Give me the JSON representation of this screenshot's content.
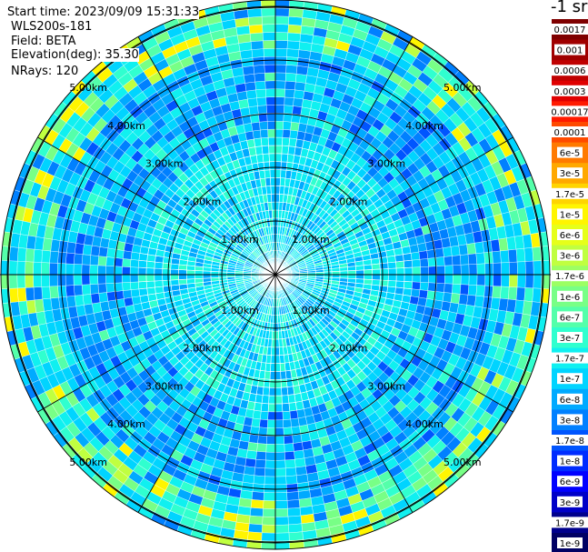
{
  "info": {
    "start_time": "Start time: 2023/09/09 15:31:33",
    "device": "WLS200s-181",
    "field": "Field: BETA",
    "elevation": "Elevation(deg): 35.30",
    "nrays": "NRays: 120"
  },
  "colorbar": {
    "unit_label": "-1 sr",
    "levels": [
      {
        "label": "0.0017",
        "color": "#7f0000"
      },
      {
        "label": "0.001",
        "color": "#a00000"
      },
      {
        "label": "0.0006",
        "color": "#c00000"
      },
      {
        "label": "0.0003",
        "color": "#e00000"
      },
      {
        "label": "0.00017",
        "color": "#ff1a00"
      },
      {
        "label": "0.0001",
        "color": "#ff4a00"
      },
      {
        "label": "6e-5",
        "color": "#ff7a00"
      },
      {
        "label": "3e-5",
        "color": "#ffa800"
      },
      {
        "label": "1.7e-5",
        "color": "#ffd400"
      },
      {
        "label": "1e-5",
        "color": "#fff500"
      },
      {
        "label": "6e-6",
        "color": "#e6ff1a"
      },
      {
        "label": "3e-6",
        "color": "#c0ff40"
      },
      {
        "label": "1.7e-6",
        "color": "#9cff63"
      },
      {
        "label": "1e-6",
        "color": "#78ff86"
      },
      {
        "label": "6e-7",
        "color": "#54ffaa"
      },
      {
        "label": "3e-7",
        "color": "#30ffcf"
      },
      {
        "label": "1.7e-7",
        "color": "#10f0f0"
      },
      {
        "label": "1e-7",
        "color": "#00d4ff"
      },
      {
        "label": "6e-8",
        "color": "#00aaff"
      },
      {
        "label": "3e-8",
        "color": "#0080ff"
      },
      {
        "label": "1.7e-8",
        "color": "#0055ff"
      },
      {
        "label": "1e-8",
        "color": "#002cff"
      },
      {
        "label": "6e-9",
        "color": "#0000ff"
      },
      {
        "label": "3e-9",
        "color": "#0000c8"
      },
      {
        "label": "1.7e-9",
        "color": "#00008c"
      },
      {
        "label": "1e-9",
        "color": "#000064"
      }
    ]
  },
  "chart_data": {
    "type": "heatmap",
    "projection": "polar (PPI scan)",
    "field": "BETA",
    "nrays": 120,
    "elevation_deg": 35.3,
    "range_rings_km": [
      1,
      2,
      3,
      4,
      5
    ],
    "ring_labels": [
      "1.00km",
      "2.00km",
      "3.00km",
      "4.00km",
      "5.00km"
    ],
    "spoke_angles_deg": [
      0,
      30,
      60,
      90,
      120,
      150,
      180,
      210,
      240,
      270,
      300,
      330
    ],
    "grid": true,
    "colorscale": "jet, logarithmic (1e-9 to 0.0017)",
    "dominant_value_range": [
      "1e-8",
      "1e-6"
    ],
    "enhanced_ring_km": [
      4.5,
      5.2
    ]
  }
}
